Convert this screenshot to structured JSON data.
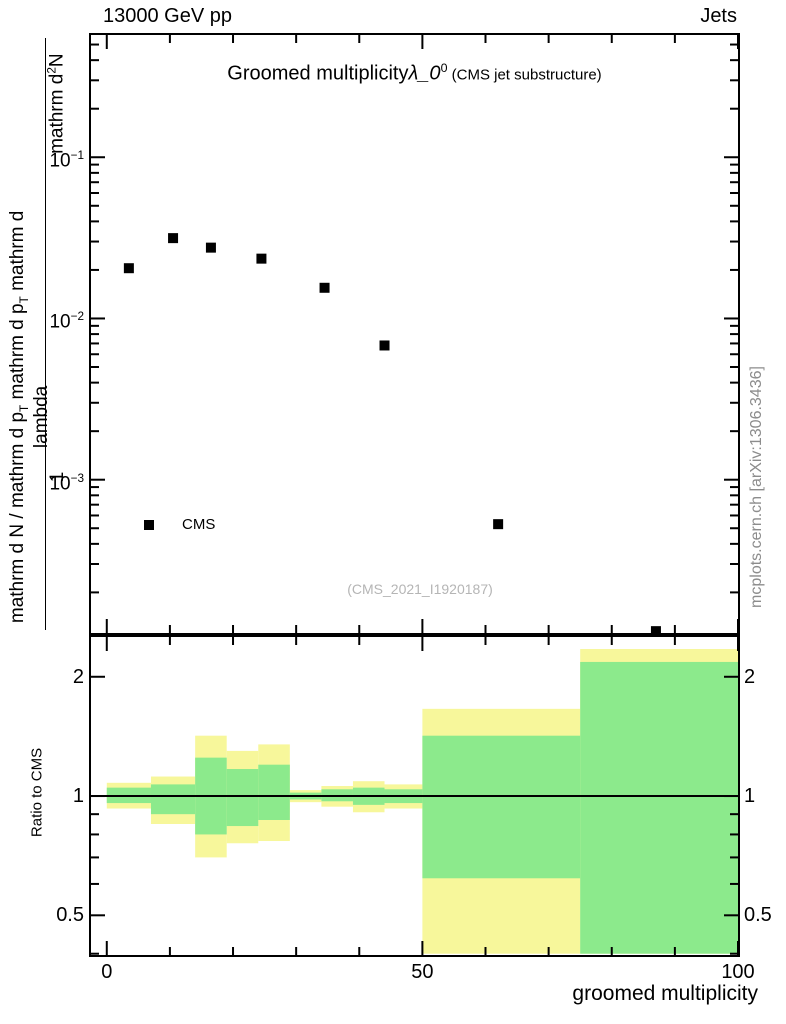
{
  "header": {
    "left": "13000 GeV pp",
    "right": "Jets"
  },
  "main": {
    "title_parts": [
      {
        "t": "Groomed multiplicity"
      },
      {
        "t": "λ_0",
        "style": "italic"
      },
      {
        "t": "0",
        "style": "sup"
      },
      {
        "t": " (CMS jet substructure)",
        "style": "small"
      }
    ],
    "ylabel": {
      "frac1_numerator": "1",
      "frac2_numerator_parts": [
        {
          "t": "mathrm d"
        },
        {
          "t": "2",
          "style": "sup"
        },
        {
          "t": "N"
        }
      ],
      "denominator_parts": [
        {
          "t": "mathrm d N / mathrm d p"
        },
        {
          "t": "T",
          "style": "sub"
        },
        {
          "t": " mathrm d p"
        },
        {
          "t": "T",
          "style": "sub"
        },
        {
          "t": " mathrm d lambda"
        }
      ]
    },
    "legend": {
      "label": "CMS"
    },
    "watermark": "(CMS_2021_I1920187)"
  },
  "ratio": {
    "ylabel": "Ratio to CMS"
  },
  "xaxis": {
    "label": "groomed multiplicity"
  },
  "sidenote": "mcplots.cern.ch [arXiv:1306.3436]",
  "colors": {
    "band_outer": "#f7f79b",
    "band_inner": "#8cea8c",
    "marker": "#000000",
    "frame": "#000000",
    "watermark": "#b5b5b5",
    "sidenote": "#8c8c8c"
  },
  "chart_data": [
    {
      "type": "scatter",
      "panel": "main",
      "title": "Groomed multiplicity λ_0^0 (CMS jet substructure)",
      "xlabel": "groomed multiplicity",
      "ylabel": "1/(dN/dp_T) d^2N/(dp_T dlambda)",
      "xlim": [
        -2.5,
        100
      ],
      "ylim": [
        0.000112,
        0.573
      ],
      "ylog": true,
      "grid": false,
      "xticks_major": [
        0,
        50,
        100
      ],
      "xticks_minor_step": 10,
      "yticks_labeled": [
        0.1,
        0.01,
        0.001
      ],
      "series": [
        {
          "name": "CMS",
          "marker": "filled-square",
          "color": "#000000",
          "x": [
            3.5,
            10.5,
            16.5,
            24.5,
            34.5,
            44,
            62,
            87
          ],
          "y": [
            0.0205,
            0.0315,
            0.0275,
            0.0235,
            0.0155,
            0.0068,
            0.00053,
            0.000115
          ]
        }
      ]
    },
    {
      "type": "area",
      "panel": "ratio",
      "title": "Ratio to CMS",
      "xlim": [
        -2.5,
        100
      ],
      "ylim": [
        0.397,
        2.52
      ],
      "ylog": true,
      "yticks_labeled": [
        0.5,
        1,
        2
      ],
      "yticks_minor": [
        0.4,
        0.6,
        0.7,
        0.8,
        0.9
      ],
      "xticks_major": [
        0,
        50,
        100
      ],
      "xticks_minor_step": 10,
      "reference_line": 1.0,
      "segments": [
        {
          "x": [
            0,
            7
          ],
          "outer": [
            0.93,
            1.08
          ],
          "inner": [
            0.96,
            1.05
          ]
        },
        {
          "x": [
            7,
            14
          ],
          "outer": [
            0.85,
            1.12
          ],
          "inner": [
            0.9,
            1.07
          ]
        },
        {
          "x": [
            14,
            19
          ],
          "outer": [
            0.7,
            1.42
          ],
          "inner": [
            0.8,
            1.25
          ]
        },
        {
          "x": [
            19,
            24
          ],
          "outer": [
            0.76,
            1.3
          ],
          "inner": [
            0.84,
            1.17
          ]
        },
        {
          "x": [
            24,
            29
          ],
          "outer": [
            0.77,
            1.35
          ],
          "inner": [
            0.87,
            1.2
          ]
        },
        {
          "x": [
            29,
            34
          ],
          "outer": [
            0.965,
            1.035
          ],
          "inner": [
            0.98,
            1.02
          ]
        },
        {
          "x": [
            34,
            39
          ],
          "outer": [
            0.94,
            1.06
          ],
          "inner": [
            0.97,
            1.04
          ]
        },
        {
          "x": [
            39,
            44
          ],
          "outer": [
            0.91,
            1.09
          ],
          "inner": [
            0.95,
            1.05
          ]
        },
        {
          "x": [
            44,
            50
          ],
          "outer": [
            0.93,
            1.07
          ],
          "inner": [
            0.96,
            1.04
          ]
        },
        {
          "x": [
            50,
            75
          ],
          "outer": [
            0.4,
            1.66
          ],
          "inner": [
            0.62,
            1.42
          ]
        },
        {
          "x": [
            75,
            100
          ],
          "outer": [
            0.4,
            2.35
          ],
          "inner": [
            0.4,
            2.18
          ]
        }
      ]
    }
  ]
}
